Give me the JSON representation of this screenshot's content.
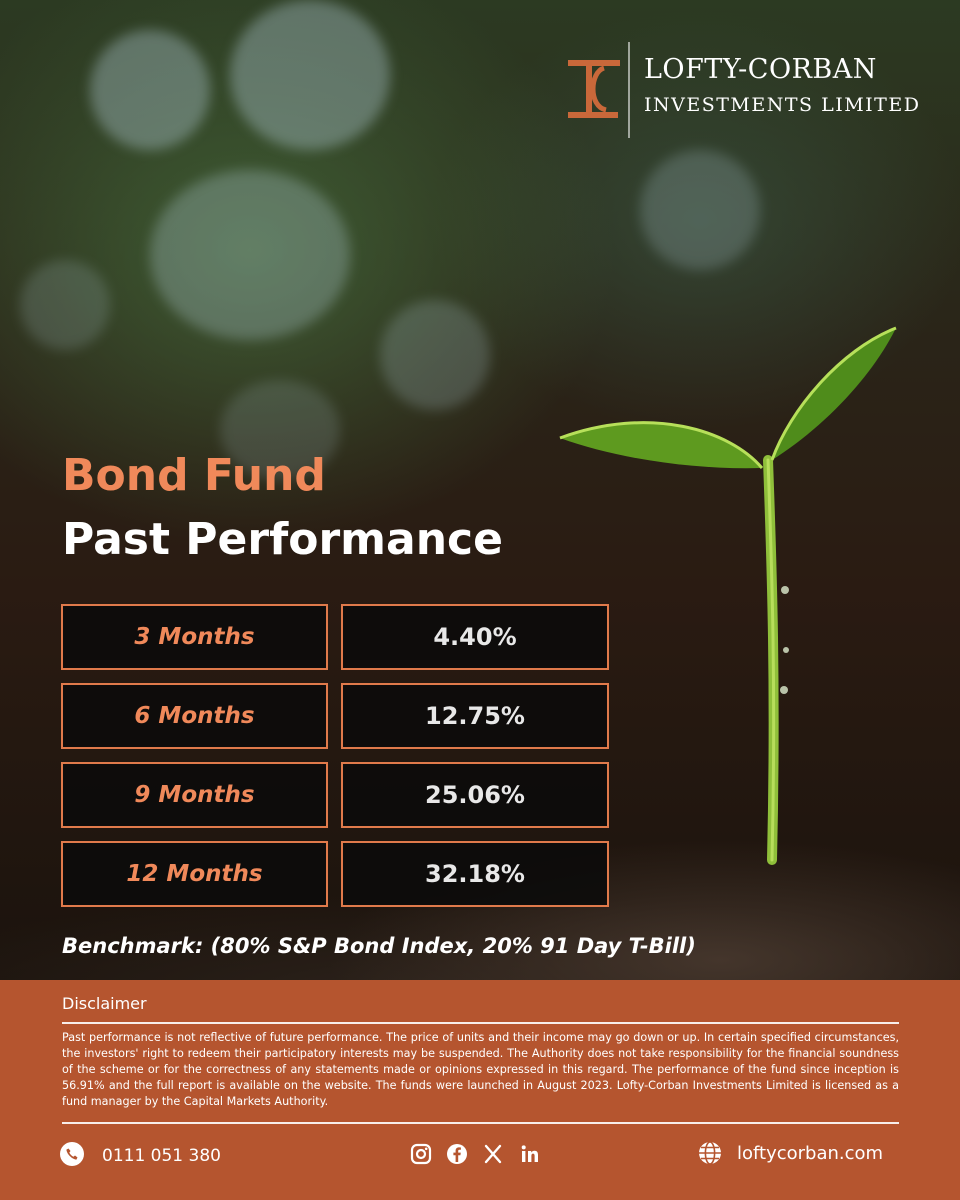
{
  "brand": {
    "name_line1": "LOFTY-CORBAN",
    "name_line2": "INVESTMENTS LIMITED",
    "accent_color": "#e07a4b",
    "footer_color": "#b5552f"
  },
  "headline": {
    "fund_name": "Bond Fund",
    "subtitle": "Past Performance"
  },
  "performance": [
    {
      "period": "3 Months",
      "return": "4.40%"
    },
    {
      "period": "6 Months",
      "return": "12.75%"
    },
    {
      "period": "9 Months",
      "return": "25.06%"
    },
    {
      "period": "12 Months",
      "return": "32.18%"
    }
  ],
  "benchmark": "Benchmark: (80% S&P Bond Index, 20% 91 Day T-Bill)",
  "disclaimer": {
    "title": "Disclaimer",
    "text": "Past performance is not reflective of future performance. The price of units and their income may go down or up. In certain specified circumstances, the investors' right to redeem their participatory interests may be suspended. The Authority does not take responsibility for the financial soundness of the scheme or for the correctness of any statements made or opinions expressed in this regard. The performance of the fund since inception is 56.91% and the full report is available on the website. The funds were launched in August 2023. Lofty-Corban Investments Limited is licensed as a fund manager by the Capital Markets Authority."
  },
  "contact": {
    "phone": "0111 051 380",
    "phone_icon": "phone-icon",
    "social_icons": [
      "instagram-icon",
      "facebook-icon",
      "x-icon",
      "linkedin-icon"
    ],
    "website": "loftycorban.com",
    "website_icon": "globe-icon"
  }
}
